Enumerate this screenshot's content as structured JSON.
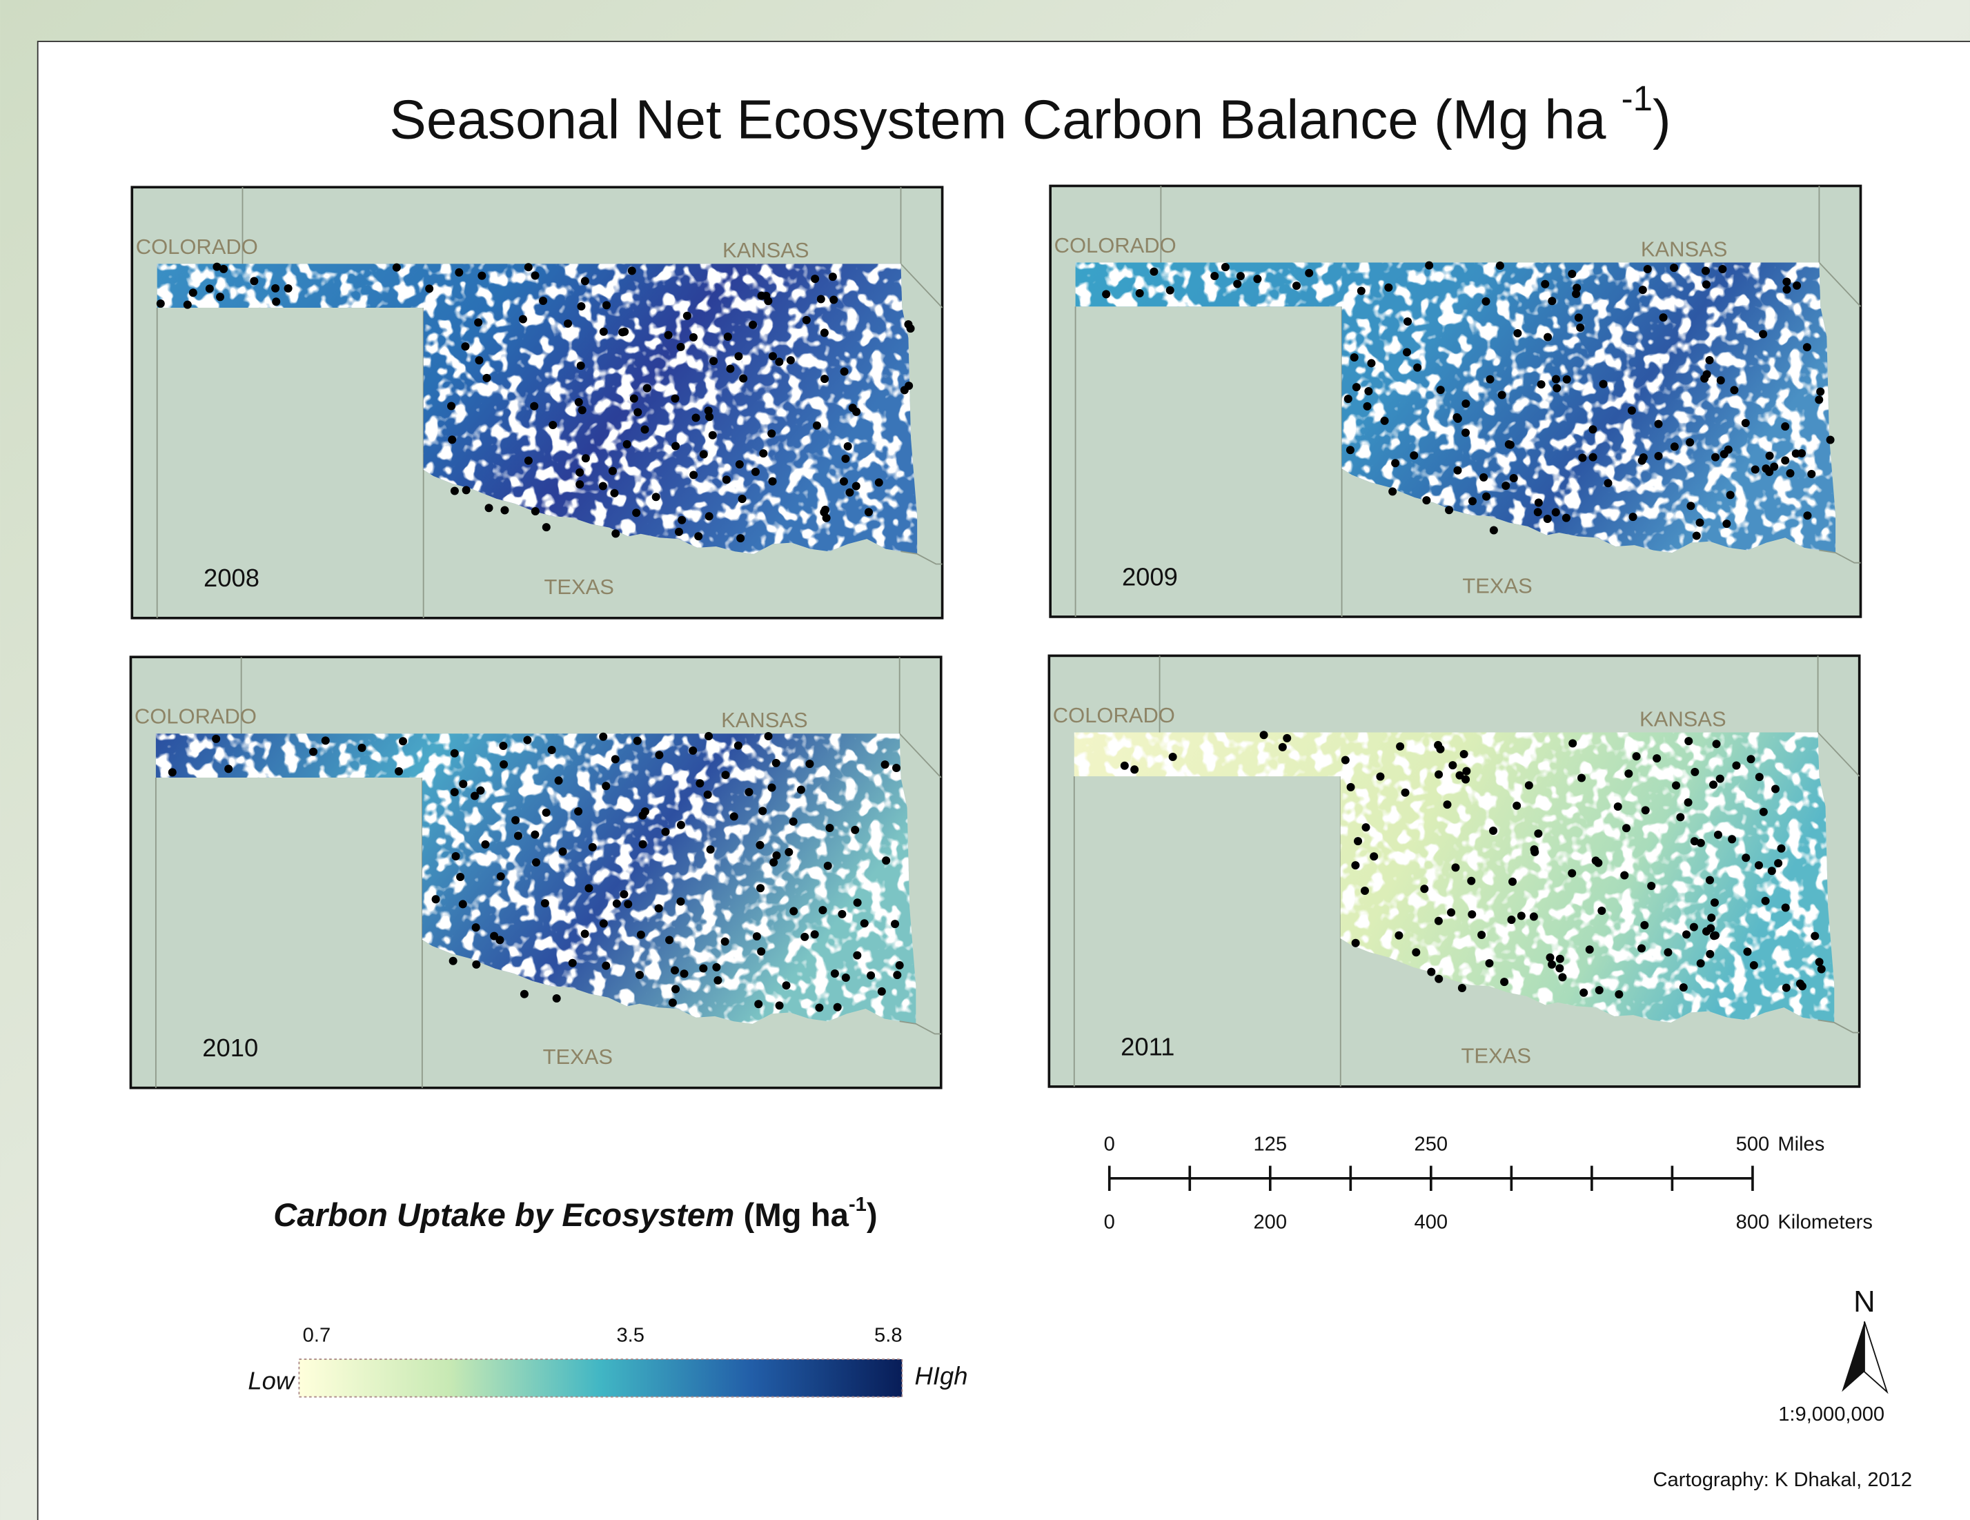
{
  "title": {
    "text": "Seasonal Net Ecosystem Carbon Balance (Mg ha",
    "superscript": "-1",
    "suffix": ")"
  },
  "maps": [
    {
      "year": 2008,
      "labels": [
        "COLORADO",
        "KANSAS",
        "TEXAS"
      ]
    },
    {
      "year": 2009,
      "labels": [
        "COLORADO",
        "KANSAS",
        "TEXAS"
      ]
    },
    {
      "year": 2010,
      "labels": [
        "COLORADO",
        "KANSAS",
        "TEXAS"
      ]
    },
    {
      "year": 2011,
      "labels": [
        "COLORADO",
        "KANSAS",
        "TEXAS"
      ]
    }
  ],
  "legend": {
    "title": "Carbon Uptake by Ecosystem",
    "unit": "(Mg ha",
    "superscript": "-1",
    "suffix": ")",
    "ticks": [
      0.7,
      3.5,
      5.8
    ],
    "low": "Low",
    "high": "HIgh"
  },
  "scale_bar": {
    "miles": {
      "ticks": [
        0,
        125,
        250,
        500
      ],
      "unit": "Miles"
    },
    "kilometers": {
      "ticks": [
        0,
        200,
        400,
        800
      ],
      "unit": "Kilometers"
    }
  },
  "north": "N",
  "ratio": "1:9,000,000",
  "credit": "Cartography: K Dhakal, 2012"
}
